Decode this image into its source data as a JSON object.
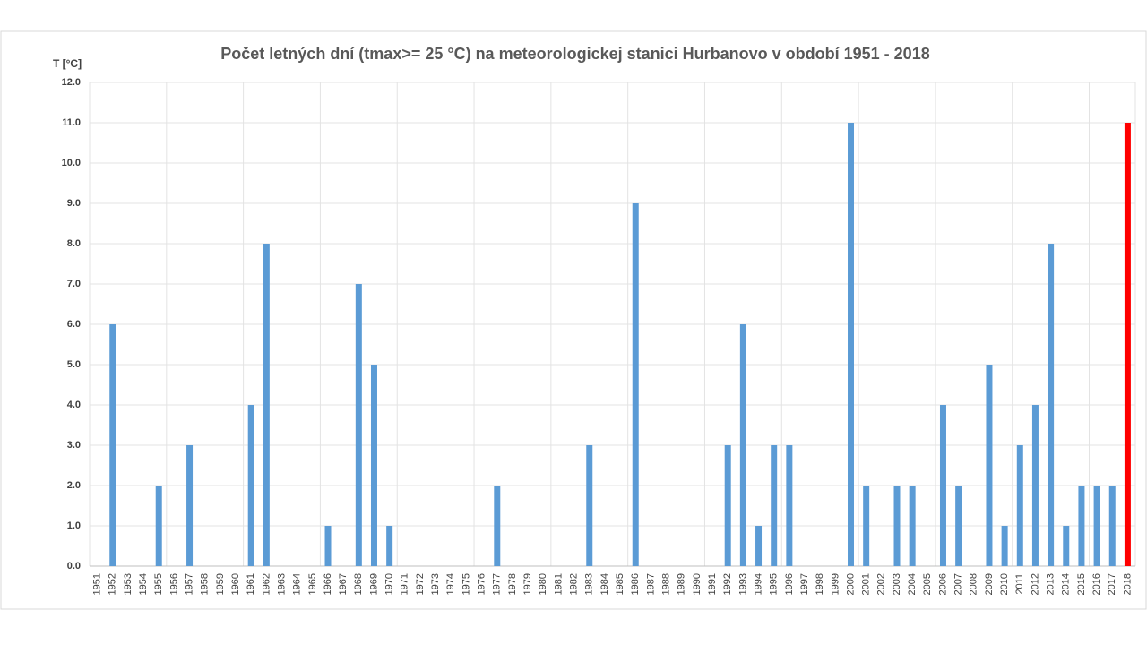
{
  "chart_data": {
    "type": "bar",
    "title": "Počet letných dní (tmax>= 25 °C)  na meteorologickej stanici Hurbanovo v období 1951 - 2018",
    "y_label": "T [°C]",
    "categories": [
      "1951",
      "1952",
      "1953",
      "1954",
      "1955",
      "1956",
      "1957",
      "1958",
      "1959",
      "1960",
      "1961",
      "1962",
      "1963",
      "1964",
      "1965",
      "1966",
      "1967",
      "1968",
      "1969",
      "1970",
      "1971",
      "1972",
      "1973",
      "1974",
      "1975",
      "1976",
      "1977",
      "1978",
      "1979",
      "1980",
      "1981",
      "1982",
      "1983",
      "1984",
      "1985",
      "1986",
      "1987",
      "1988",
      "1989",
      "1990",
      "1991",
      "1992",
      "1993",
      "1994",
      "1995",
      "1996",
      "1997",
      "1998",
      "1999",
      "2000",
      "2001",
      "2002",
      "2003",
      "2004",
      "2005",
      "2006",
      "2007",
      "2008",
      "2009",
      "2010",
      "2011",
      "2012",
      "2013",
      "2014",
      "2015",
      "2016",
      "2017",
      "2018"
    ],
    "values": [
      0,
      6,
      0,
      0,
      2,
      0,
      3,
      0,
      0,
      0,
      4,
      8,
      0,
      0,
      0,
      1,
      0,
      7,
      5,
      1,
      0,
      0,
      0,
      0,
      0,
      0,
      2,
      0,
      0,
      0,
      0,
      0,
      3,
      0,
      0,
      9,
      0,
      0,
      0,
      0,
      0,
      3,
      6,
      1,
      3,
      3,
      0,
      0,
      0,
      11,
      2,
      0,
      2,
      2,
      0,
      4,
      2,
      0,
      5,
      1,
      3,
      4,
      8,
      1,
      2,
      2,
      2,
      11
    ],
    "color": "#5b9bd5",
    "highlight": {
      "category": "2018",
      "color": "#ff0000"
    },
    "ylim": [
      0,
      12
    ],
    "yticks": [
      {
        "value": 0,
        "label": "0.0"
      },
      {
        "value": 1,
        "label": "1.0"
      },
      {
        "value": 2,
        "label": "2.0"
      },
      {
        "value": 3,
        "label": "3.0"
      },
      {
        "value": 4,
        "label": "4.0"
      },
      {
        "value": 5,
        "label": "5.0"
      },
      {
        "value": 6,
        "label": "6.0"
      },
      {
        "value": 7,
        "label": "7.0"
      },
      {
        "value": 8,
        "label": "8.0"
      },
      {
        "value": 9,
        "label": "9.0"
      },
      {
        "value": 10,
        "label": "10.0"
      },
      {
        "value": 11,
        "label": "11.0"
      },
      {
        "value": 12,
        "label": "12.0"
      }
    ],
    "grid": true
  }
}
